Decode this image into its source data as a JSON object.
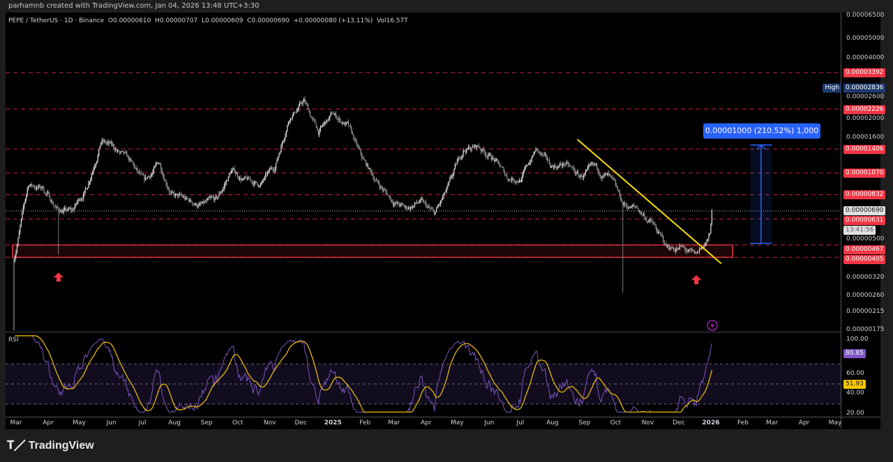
{
  "header": {
    "attribution": "parhamnb created with TradingView.com, Jan 04, 2026 13:48 UTC+3:30"
  },
  "legend": {
    "symbol": "PEPE / TetherUS · 1D · Binance",
    "open": "O0.00000610",
    "high": "H0.00000707",
    "low": "L0.00000609",
    "close": "C0.00000690",
    "change": "+0.00000080 (+13.11%)",
    "volume": "Vol16.57T"
  },
  "price_axis": {
    "scale": "log",
    "ticks": [
      "0.00006500",
      "0.00005000",
      "0.00004000",
      "0.00002600",
      "0.00002000",
      "0.00001600",
      "0.00000500",
      "0.00000320",
      "0.00000260",
      "0.00000215",
      "0.00000175"
    ],
    "levels": [
      "0.00003392",
      "0.00002226",
      "0.00001406",
      "0.00001070",
      "0.00000832",
      "0.00000631",
      "0.00000467",
      "0.00000405"
    ],
    "level_color": "#f23645",
    "high_label": "High",
    "high_value": "0.00002836",
    "last_price": "0.00000690",
    "countdown": "13:41:56"
  },
  "time_axis": {
    "labels": [
      "Mar",
      "Apr",
      "May",
      "Jun",
      "Jul",
      "Aug",
      "Sep",
      "Oct",
      "Nov",
      "Dec",
      "2025",
      "Feb",
      "Mar",
      "Apr",
      "May",
      "Jun",
      "Jul",
      "Aug",
      "Sep",
      "Oct",
      "Nov",
      "Dec",
      "2026",
      "Feb",
      "Mar",
      "Apr",
      "May"
    ]
  },
  "measure": {
    "label": "0.00001000 (210.52%) 1,000",
    "color": "#2962ff"
  },
  "rsi": {
    "title": "RSI",
    "ticks": [
      "100.00",
      "60.00",
      "40.00",
      "20.00"
    ],
    "rsi_value": "80.85",
    "ma_value": "51.93",
    "rsi_color": "#7e57c2",
    "ma_color": "#f7c600"
  },
  "footer": {
    "logo": "TradingView"
  },
  "chart_data": {
    "type": "candlestick",
    "x_axis": "date",
    "y_scale": "log",
    "ylim": [
      1.75e-06,
      6.5e-05
    ],
    "series_close": [
      [
        "2024-03-01",
        4e-06
      ],
      [
        "2024-03-15",
        9.34e-06
      ],
      [
        "2024-03-29",
        8.97e-06
      ],
      [
        "2024-04-12",
        7.06e-06
      ],
      [
        "2024-04-26",
        6.8e-06
      ],
      [
        "2024-05-10",
        8.97e-06
      ],
      [
        "2024-05-24",
        1.573e-05
      ],
      [
        "2024-06-07",
        1.395e-05
      ],
      [
        "2024-06-21",
        1.189e-05
      ],
      [
        "2024-07-05",
        9.34e-06
      ],
      [
        "2024-07-19",
        1.189e-05
      ],
      [
        "2024-08-02",
        8.29e-06
      ],
      [
        "2024-08-16",
        7.65e-06
      ],
      [
        "2024-08-30",
        7.35e-06
      ],
      [
        "2024-09-13",
        7.65e-06
      ],
      [
        "2024-09-27",
        1.097e-05
      ],
      [
        "2024-10-11",
        9.72e-06
      ],
      [
        "2024-10-25",
        9.34e-06
      ],
      [
        "2024-11-08",
        1.142e-05
      ],
      [
        "2024-11-22",
        2.08e-05
      ],
      [
        "2024-12-06",
        2.444e-05
      ],
      [
        "2024-12-20",
        1.705e-05
      ],
      [
        "2025-01-03",
        2.08e-05
      ],
      [
        "2025-01-17",
        1.848e-05
      ],
      [
        "2025-01-31",
        1.237e-05
      ],
      [
        "2025-02-14",
        9.72e-06
      ],
      [
        "2025-02-28",
        7.96e-06
      ],
      [
        "2025-03-14",
        7.06e-06
      ],
      [
        "2025-03-28",
        7.65e-06
      ],
      [
        "2025-04-11",
        6.51e-06
      ],
      [
        "2025-04-25",
        8.97e-06
      ],
      [
        "2025-05-09",
        1.395e-05
      ],
      [
        "2025-05-23",
        1.452e-05
      ],
      [
        "2025-06-06",
        1.288e-05
      ],
      [
        "2025-06-20",
        1.012e-05
      ],
      [
        "2025-07-04",
        1.012e-05
      ],
      [
        "2025-07-18",
        1.395e-05
      ],
      [
        "2025-08-01",
        1.142e-05
      ],
      [
        "2025-08-15",
        1.189e-05
      ],
      [
        "2025-08-29",
        1.012e-05
      ],
      [
        "2025-09-12",
        1.097e-05
      ],
      [
        "2025-09-26",
        1.012e-05
      ],
      [
        "2025-10-10",
        7.35e-06
      ],
      [
        "2025-10-24",
        7.06e-06
      ],
      [
        "2025-11-07",
        6.01e-06
      ],
      [
        "2025-11-21",
        4.53e-06
      ],
      [
        "2025-12-05",
        4.53e-06
      ],
      [
        "2025-12-19",
        4.02e-06
      ],
      [
        "2026-01-02",
        5.12e-06
      ],
      [
        "2026-01-04",
        6.9e-06
      ]
    ],
    "wick_lows": [
      [
        "2024-03-01",
        1.75e-06
      ],
      [
        "2024-04-13",
        4.18e-06
      ],
      [
        "2025-10-10",
        2.7e-06
      ]
    ],
    "all_time_high": [
      "2024-12-09",
      2.836e-05
    ],
    "support_zone": {
      "from": 4.05e-06,
      "to": 4.67e-06,
      "start": "2024-03-01",
      "end": "2026-01-24"
    },
    "trendline": {
      "start": [
        "2025-08-27",
        1.573e-05
      ],
      "end": [
        "2026-01-13",
        3.77e-06
      ],
      "color": "#f5e000"
    },
    "measure_range": {
      "from": 4.75e-06,
      "to": 1.475e-05,
      "start": "2026-02-10",
      "end": "2026-03-03"
    },
    "arrows_up": [
      [
        "2024-04-13",
        3.4e-06
      ],
      [
        "2025-12-20",
        3.3e-06
      ]
    ],
    "rsi_bands": [
      70,
      50,
      30
    ],
    "rsi_ylim": [
      20,
      100
    ]
  }
}
